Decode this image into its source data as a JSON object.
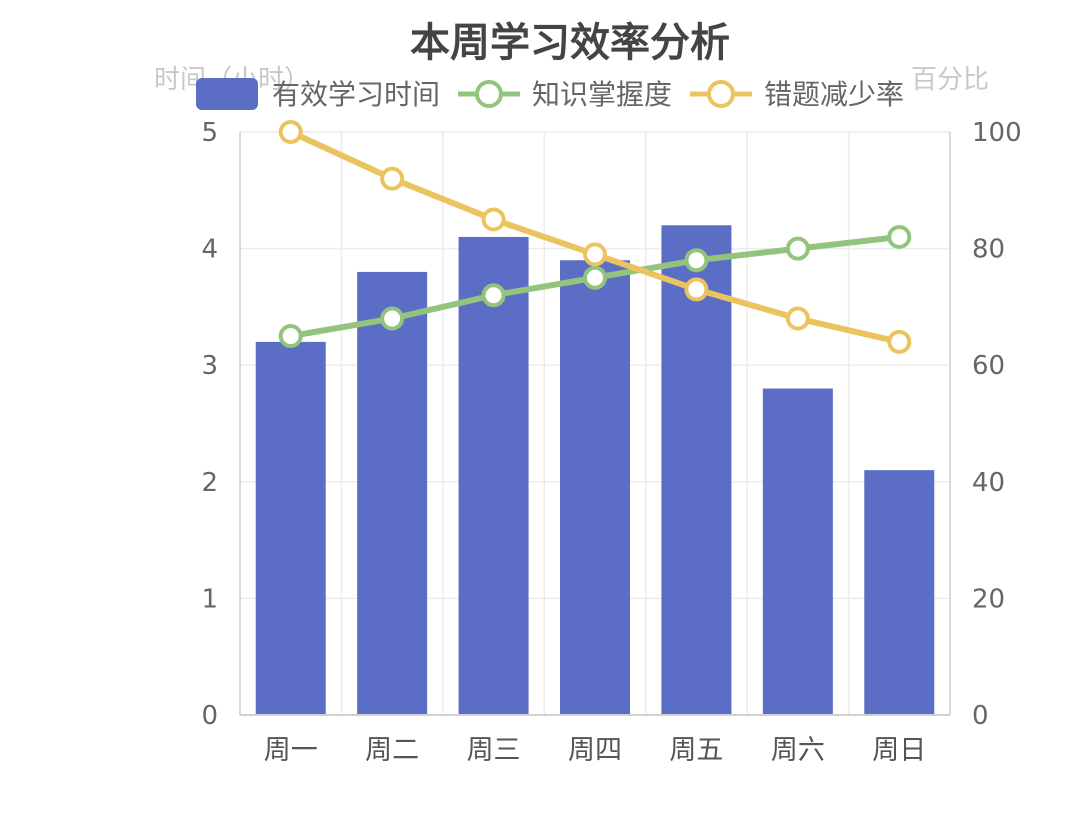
{
  "chart_data": {
    "type": "bar",
    "title": "本周学习效率分析",
    "categories": [
      "周一",
      "周二",
      "周三",
      "周四",
      "周五",
      "周六",
      "周日"
    ],
    "y_left": {
      "label": "时间（小时）",
      "ylim": [
        0,
        5
      ],
      "ticks": [
        0,
        1,
        2,
        3,
        4,
        5
      ]
    },
    "y_right": {
      "label": "百分比",
      "ylim": [
        0,
        100
      ],
      "ticks": [
        0,
        20,
        40,
        60,
        80,
        100
      ]
    },
    "series": [
      {
        "name": "有效学习时间",
        "type": "bar",
        "axis": "left",
        "color": "#5b6dc4",
        "values": [
          3.2,
          3.8,
          4.1,
          3.9,
          4.2,
          2.8,
          2.1
        ]
      },
      {
        "name": "知识掌握度",
        "type": "line",
        "axis": "right",
        "color": "#93c47d",
        "values": [
          65,
          68,
          72,
          75,
          78,
          80,
          82
        ]
      },
      {
        "name": "错题减少率",
        "type": "line",
        "axis": "right",
        "color": "#ecc45f",
        "values": [
          100,
          92,
          85,
          79,
          73,
          68,
          64
        ]
      }
    ],
    "grid": true,
    "legend_position": "top-center"
  }
}
